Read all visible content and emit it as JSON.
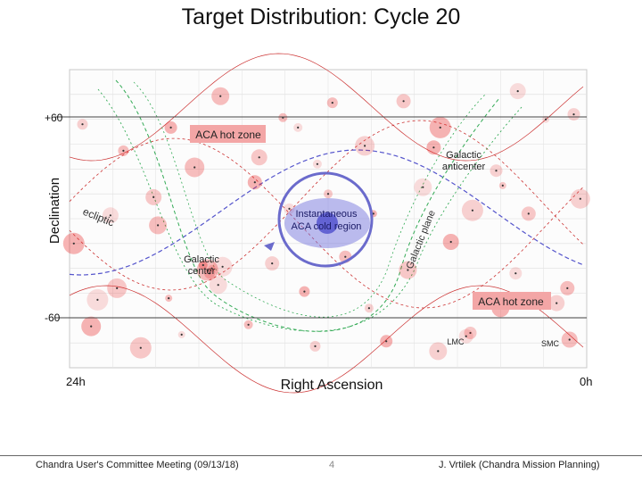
{
  "slide": {
    "title": "Target Distribution: Cycle 20",
    "footer_left": "Chandra User's Committee Meeting (09/13/18)",
    "page_number": "4",
    "footer_right": "J. Vrtilek (Chandra Mission Planning)"
  },
  "chart_data": {
    "type": "scatter",
    "title": "Target Distribution: Cycle 20",
    "xlabel": "Right Ascension",
    "ylabel": "Declination",
    "x_tick_labels": [
      "24h",
      "0h"
    ],
    "y_tick_labels": [
      "+60",
      "-60"
    ],
    "xlim": [
      24,
      0
    ],
    "ylim": [
      -90,
      90
    ],
    "grid": true,
    "annotations": {
      "aca_hot_zone_north": "ACA hot zone",
      "aca_hot_zone_south": "ACA hot zone",
      "galactic_anticenter": "Galactic anticenter",
      "galactic_center": "Galactic center",
      "ecliptic": "ecliptic",
      "galactic_plane": "Galactic plane",
      "cold_region": "Instantaneous ACA cold region",
      "lmc": "LMC",
      "smc": "SMC"
    },
    "colors": {
      "target": "#e83030",
      "ecliptic": "#5555cc",
      "galactic": "#33aa55",
      "hot_zone_box": "#ee6666",
      "cold_region": "#5555cc",
      "ra_grid": "#cc3333"
    },
    "targets": [
      [
        1.9,
        60
      ],
      [
        14.1,
        61
      ],
      [
        23.4,
        57
      ],
      [
        19.3,
        55
      ],
      [
        8.5,
        71
      ],
      [
        3.2,
        77
      ],
      [
        17.0,
        74
      ],
      [
        10.3,
        44
      ],
      [
        6.8,
        55
      ],
      [
        16.2,
        48
      ],
      [
        12.5,
        33
      ],
      [
        21.5,
        41
      ],
      [
        4.2,
        29
      ],
      [
        15.4,
        22
      ],
      [
        20.1,
        13
      ],
      [
        7.6,
        19
      ],
      [
        18.2,
        31
      ],
      [
        5.3,
        5
      ],
      [
        9.9,
        3
      ],
      [
        12.0,
        15
      ],
      [
        13.8,
        6
      ],
      [
        11.2,
        -23
      ],
      [
        14.6,
        -27
      ],
      [
        6.3,
        -14
      ],
      [
        8.3,
        -31
      ],
      [
        16.9,
        -29
      ],
      [
        17.6,
        -31
      ],
      [
        17.4,
        -30
      ],
      [
        17.8,
        -28
      ],
      [
        17.5,
        -33
      ],
      [
        3.3,
        -33
      ],
      [
        0.9,
        -42
      ],
      [
        1.4,
        -51
      ],
      [
        4.0,
        -54
      ],
      [
        21.8,
        -42
      ],
      [
        22.7,
        -49
      ],
      [
        19.4,
        -48
      ],
      [
        10.1,
        -54
      ],
      [
        13.1,
        -44
      ],
      [
        5.4,
        -69
      ],
      [
        5.6,
        -71
      ],
      [
        0.8,
        -73
      ],
      [
        6.9,
        -80
      ],
      [
        23.0,
        -65
      ],
      [
        20.7,
        -78
      ],
      [
        18.8,
        -70
      ],
      [
        15.7,
        -64
      ],
      [
        12.6,
        -77
      ],
      [
        9.3,
        -74
      ],
      [
        2.7,
        3
      ],
      [
        22.1,
        2
      ],
      [
        19.9,
        -4
      ],
      [
        0.3,
        12
      ],
      [
        23.8,
        -15
      ],
      [
        3.9,
        20
      ],
      [
        13.4,
        55
      ],
      [
        11.8,
        70
      ],
      [
        0.6,
        63
      ],
      [
        7.1,
        43
      ],
      [
        15.2,
        37
      ],
      [
        17.1,
        -40
      ]
    ]
  }
}
